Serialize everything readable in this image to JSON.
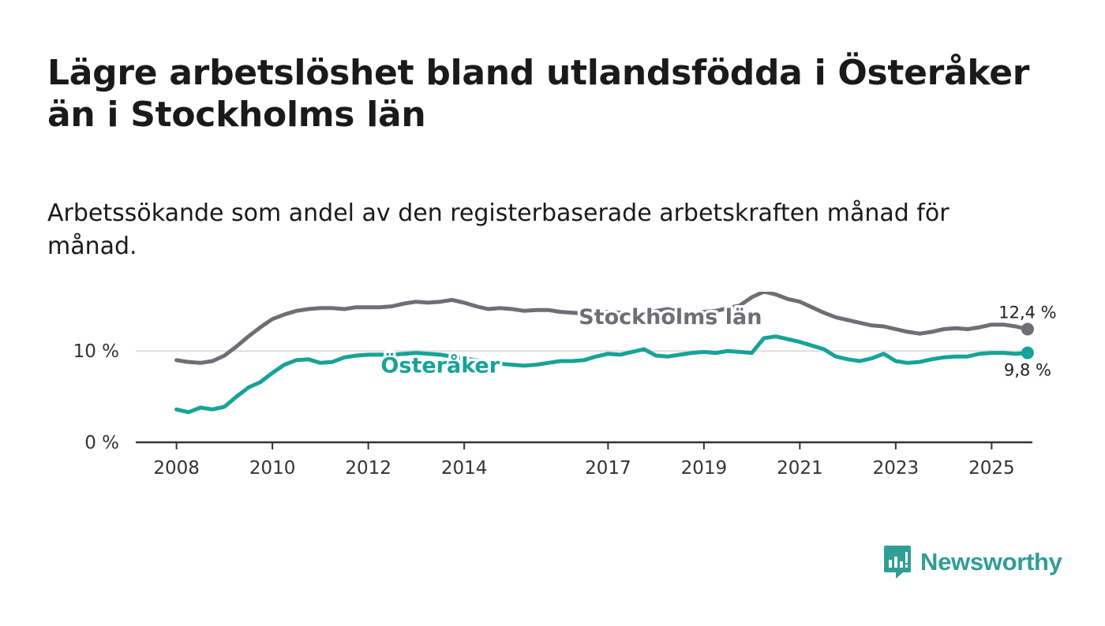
{
  "title": "Lägre arbetslöshet bland utlandsfödda i Österåker än i Stockholms län",
  "subtitle": "Arbetssökande som andel av den registerbaserade arbetskraften månad för månad.",
  "logo_text": "Newsworthy",
  "colors": {
    "stockholm": "#6e6e76",
    "osteraker": "#17a398",
    "grid": "#dddddd",
    "axis": "#333333",
    "logo": "#2f9e96"
  },
  "chart_data": {
    "type": "line",
    "title": "Lägre arbetslöshet bland utlandsfödda i Österåker än i Stockholms län",
    "xlabel": "",
    "ylabel": "",
    "ylim": [
      0,
      16.5
    ],
    "y_ticks": [
      {
        "value": 0,
        "label": "0 %"
      },
      {
        "value": 10,
        "label": "10 %"
      }
    ],
    "x_ticks": [
      {
        "value": 2008,
        "label": "2008"
      },
      {
        "value": 2010,
        "label": "2010"
      },
      {
        "value": 2012,
        "label": "2012"
      },
      {
        "value": 2014,
        "label": "2014"
      },
      {
        "value": 2017,
        "label": "2017"
      },
      {
        "value": 2019,
        "label": "2019"
      },
      {
        "value": 2021,
        "label": "2021"
      },
      {
        "value": 2023,
        "label": "2023"
      },
      {
        "value": 2025,
        "label": "2025"
      }
    ],
    "x_range": [
      2007.15,
      2025.85
    ],
    "series": [
      {
        "name": "Stockholms län",
        "color": "#6e6e76",
        "end_label": "12,4 %",
        "x": [
          2008.0,
          2008.25,
          2008.5,
          2008.75,
          2009.0,
          2009.25,
          2009.5,
          2009.75,
          2010.0,
          2010.25,
          2010.5,
          2010.75,
          2011.0,
          2011.25,
          2011.5,
          2011.75,
          2012.0,
          2012.25,
          2012.5,
          2012.75,
          2013.0,
          2013.25,
          2013.5,
          2013.75,
          2014.0,
          2014.25,
          2014.5,
          2014.75,
          2015.0,
          2015.25,
          2015.5,
          2015.75,
          2016.0,
          2016.25,
          2016.5,
          2016.75,
          2017.0,
          2017.25,
          2017.5,
          2017.75,
          2018.0,
          2018.25,
          2018.5,
          2018.75,
          2019.0,
          2019.25,
          2019.5,
          2019.75,
          2020.0,
          2020.25,
          2020.5,
          2020.75,
          2021.0,
          2021.25,
          2021.5,
          2021.75,
          2022.0,
          2022.25,
          2022.5,
          2022.75,
          2023.0,
          2023.25,
          2023.5,
          2023.75,
          2024.0,
          2024.25,
          2024.5,
          2024.75,
          2025.0,
          2025.25,
          2025.5,
          2025.75
        ],
        "values": [
          9.0,
          8.8,
          8.7,
          8.9,
          9.5,
          10.5,
          11.6,
          12.6,
          13.5,
          14.0,
          14.4,
          14.6,
          14.7,
          14.7,
          14.6,
          14.8,
          14.8,
          14.8,
          14.9,
          15.2,
          15.4,
          15.3,
          15.4,
          15.6,
          15.3,
          14.9,
          14.6,
          14.7,
          14.6,
          14.4,
          14.5,
          14.5,
          14.3,
          14.2,
          14.1,
          14.1,
          14.3,
          14.2,
          14.2,
          14.2,
          14.4,
          14.6,
          14.3,
          14.2,
          14.3,
          14.4,
          14.7,
          15.0,
          15.9,
          16.5,
          16.2,
          15.7,
          15.4,
          14.8,
          14.2,
          13.7,
          13.4,
          13.1,
          12.8,
          12.7,
          12.4,
          12.1,
          11.9,
          12.1,
          12.4,
          12.5,
          12.4,
          12.6,
          12.9,
          12.9,
          12.7,
          12.4
        ]
      },
      {
        "name": "Österåker",
        "color": "#17a398",
        "end_label": "9,8 %",
        "x": [
          2008.0,
          2008.25,
          2008.5,
          2008.75,
          2009.0,
          2009.25,
          2009.5,
          2009.75,
          2010.0,
          2010.25,
          2010.5,
          2010.75,
          2011.0,
          2011.25,
          2011.5,
          2011.75,
          2012.0,
          2012.25,
          2012.5,
          2012.75,
          2013.0,
          2013.25,
          2013.5,
          2013.75,
          2014.0,
          2014.25,
          2014.5,
          2014.75,
          2015.0,
          2015.25,
          2015.5,
          2015.75,
          2016.0,
          2016.25,
          2016.5,
          2016.75,
          2017.0,
          2017.25,
          2017.5,
          2017.75,
          2018.0,
          2018.25,
          2018.5,
          2018.75,
          2019.0,
          2019.25,
          2019.5,
          2019.75,
          2020.0,
          2020.25,
          2020.5,
          2020.75,
          2021.0,
          2021.25,
          2021.5,
          2021.75,
          2022.0,
          2022.25,
          2022.5,
          2022.75,
          2023.0,
          2023.25,
          2023.5,
          2023.75,
          2024.0,
          2024.25,
          2024.5,
          2024.75,
          2025.0,
          2025.25,
          2025.5,
          2025.75
        ],
        "values": [
          3.6,
          3.3,
          3.8,
          3.6,
          3.9,
          5.0,
          6.0,
          6.6,
          7.6,
          8.5,
          9.0,
          9.1,
          8.7,
          8.8,
          9.3,
          9.5,
          9.6,
          9.6,
          9.6,
          9.7,
          9.8,
          9.7,
          9.6,
          9.4,
          9.2,
          9.0,
          8.8,
          8.6,
          8.5,
          8.4,
          8.5,
          8.7,
          8.9,
          8.9,
          9.0,
          9.4,
          9.7,
          9.6,
          9.9,
          10.2,
          9.5,
          9.4,
          9.6,
          9.8,
          9.9,
          9.8,
          10.0,
          9.9,
          9.8,
          11.4,
          11.6,
          11.3,
          11.0,
          10.6,
          10.2,
          9.4,
          9.1,
          8.9,
          9.2,
          9.7,
          8.9,
          8.7,
          8.8,
          9.1,
          9.3,
          9.4,
          9.4,
          9.7,
          9.8,
          9.8,
          9.7,
          9.8
        ]
      }
    ]
  }
}
